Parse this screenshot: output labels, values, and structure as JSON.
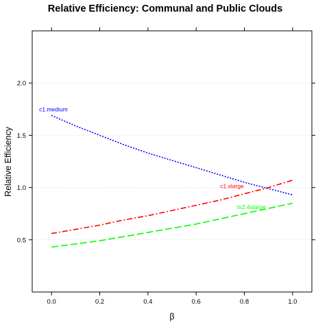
{
  "chart_data": {
    "type": "line",
    "title": "Relative Efficiency: Communal and Public Clouds",
    "xlabel": "β",
    "ylabel": "Relative Efficiency",
    "xlim": [
      -0.08,
      1.08
    ],
    "ylim": [
      0.0,
      2.5
    ],
    "x_ticks": [
      0.0,
      0.2,
      0.4,
      0.6,
      0.8,
      1.0
    ],
    "x_tick_labels": [
      "0.0",
      "0.2",
      "0.4",
      "0.6",
      "0.8",
      "1.0"
    ],
    "y_ticks": [
      0.5,
      1.0,
      1.5,
      2.0
    ],
    "y_tick_labels": [
      "0.5",
      "1.0",
      "1.5",
      "2.0"
    ],
    "grid": "horizontal dotted",
    "x": [
      0.0,
      0.1,
      0.2,
      0.3,
      0.4,
      0.5,
      0.6,
      0.7,
      0.8,
      0.9,
      1.0
    ],
    "series": [
      {
        "name": "c1.medium",
        "color": "#0000ff",
        "dash": "dotted",
        "values": [
          1.69,
          1.59,
          1.5,
          1.41,
          1.33,
          1.26,
          1.19,
          1.12,
          1.05,
          0.99,
          0.93
        ]
      },
      {
        "name": "c1.xlarge",
        "color": "#ff0000",
        "dash": "dash-dot",
        "values": [
          0.56,
          0.6,
          0.64,
          0.69,
          0.73,
          0.78,
          0.83,
          0.88,
          0.94,
          1.0,
          1.07
        ]
      },
      {
        "name": "m2.4xlarge",
        "color": "#00ff00",
        "dash": "long-dash",
        "values": [
          0.43,
          0.46,
          0.49,
          0.53,
          0.57,
          0.61,
          0.65,
          0.7,
          0.75,
          0.8,
          0.85
        ]
      }
    ]
  }
}
